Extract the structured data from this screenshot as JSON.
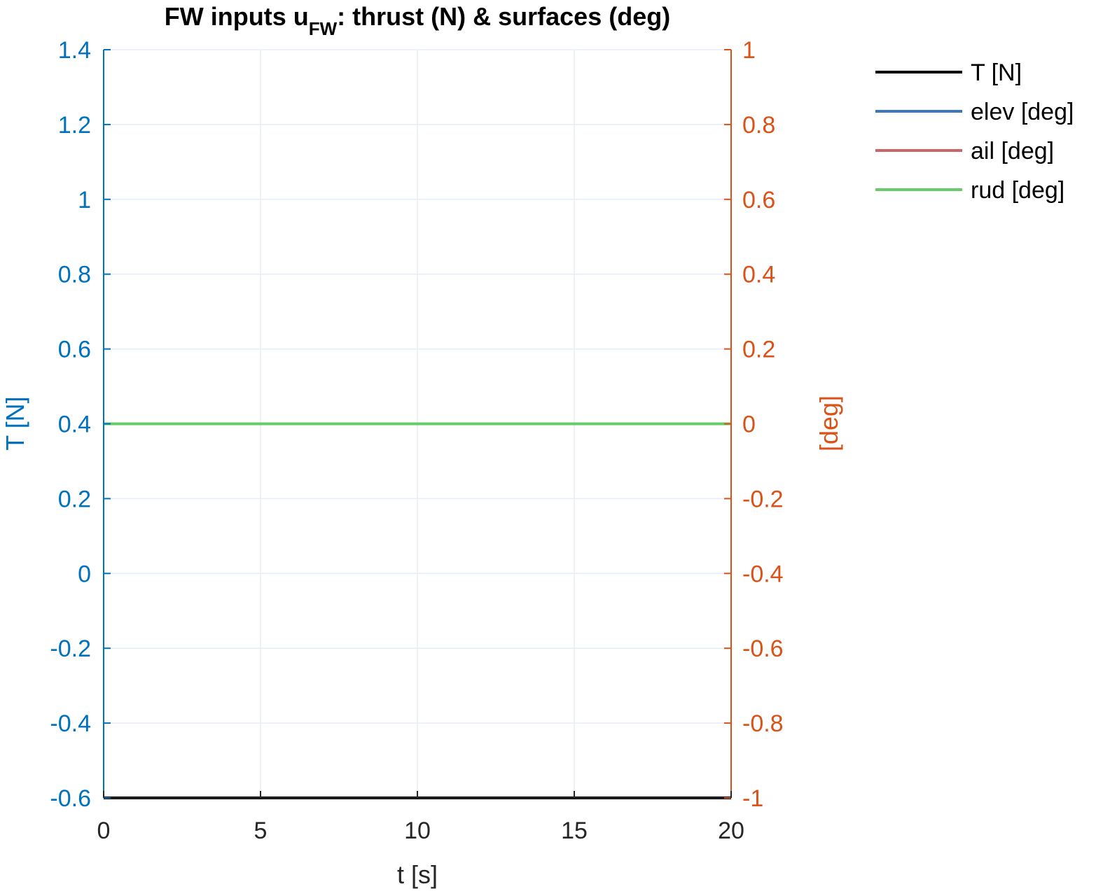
{
  "chart_data": {
    "type": "line",
    "title": {
      "main": "FW inputs u",
      "subscript": "FW",
      "rest": ": thrust (N) & surfaces (deg)"
    },
    "xlabel": "t [s]",
    "ylabel_left": "T [N]",
    "ylabel_right": "[deg]",
    "xlim": [
      0,
      20
    ],
    "ylim_left": [
      -0.6,
      1.4
    ],
    "ylim_right": [
      -1,
      1
    ],
    "x_ticks": [
      "0",
      "5",
      "10",
      "15",
      "20"
    ],
    "y_ticks_left": [
      "-0.6",
      "-0.4",
      "-0.2",
      "0",
      "0.2",
      "0.4",
      "0.6",
      "0.8",
      "1",
      "1.2",
      "1.4"
    ],
    "y_ticks_right": [
      "-1",
      "-0.8",
      "-0.6",
      "-0.4",
      "-0.2",
      "0",
      "0.2",
      "0.4",
      "0.6",
      "0.8",
      "1"
    ],
    "grid": true,
    "legend_position": "outside-top-right",
    "colors": {
      "left_axis": "#0072BD",
      "right_axis": "#D95319",
      "x_axis": "#262626",
      "grid": "#E6EEF6"
    },
    "series": [
      {
        "name": "T [N]",
        "axis": "left",
        "color": "#000000",
        "x": [
          0,
          20
        ],
        "y": [
          -0.6,
          -0.6
        ]
      },
      {
        "name": "elev [deg]",
        "axis": "right",
        "color": "#3C78C0",
        "x": [
          0,
          20
        ],
        "y": [
          0,
          0
        ]
      },
      {
        "name": "ail [deg]",
        "axis": "right",
        "color": "#CC6666",
        "x": [
          0,
          20
        ],
        "y": [
          0,
          0
        ]
      },
      {
        "name": "rud [deg]",
        "axis": "right",
        "color": "#66CC66",
        "x": [
          0,
          20
        ],
        "y": [
          0,
          0
        ]
      }
    ]
  }
}
